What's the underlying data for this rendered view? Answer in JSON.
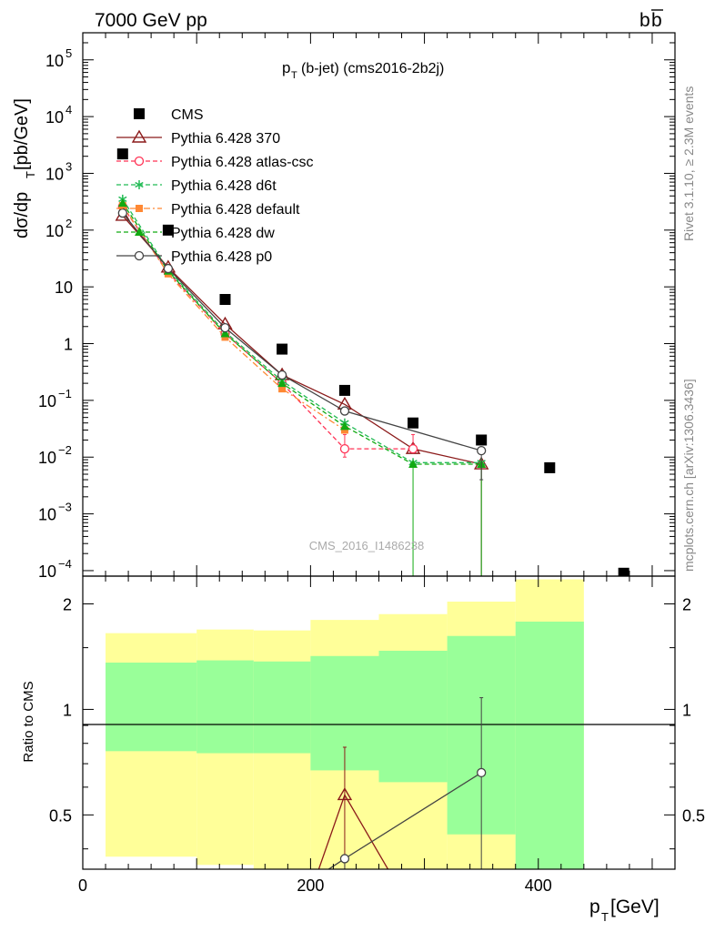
{
  "header": {
    "energy_label": "7000 GeV pp",
    "process_prefix": "b",
    "process_bar": "b"
  },
  "side_labels": {
    "rivet": "Rivet 3.1.10, ≥ 2.3M events",
    "mcplots": "mcplots.cern.ch [arXiv:1306.3436]"
  },
  "chart_data": [
    {
      "type": "scatter",
      "title_main": "p",
      "title_sub": "T",
      "title_rest": "(b-jet) (cms2016-2b2j)",
      "ylabel_main": "dσ/dp",
      "ylabel_sub": "T",
      "ylabel_rest": " [pb/GeV]",
      "watermark": "CMS_2016_I1486238",
      "yscale": "log",
      "xlim": [
        0,
        520
      ],
      "ylim": [
        8e-05,
        300000
      ],
      "x_ticks": [
        0,
        200,
        400
      ],
      "y_ticks": [
        {
          "value": 100000,
          "base": "10",
          "exp": "5"
        },
        {
          "value": 10000,
          "base": "10",
          "exp": "4"
        },
        {
          "value": 1000,
          "base": "10",
          "exp": "3"
        },
        {
          "value": 100,
          "base": "10",
          "exp": "2"
        },
        {
          "value": 10,
          "base": "10",
          "exp": ""
        },
        {
          "value": 1,
          "base": "1",
          "exp": ""
        },
        {
          "value": 0.1,
          "base": "10",
          "exp": "−1"
        },
        {
          "value": 0.01,
          "base": "10",
          "exp": "−2"
        },
        {
          "value": 0.001,
          "base": "10",
          "exp": "−3"
        },
        {
          "value": 0.0001,
          "base": "10",
          "exp": "−4"
        }
      ],
      "legend_position": "top-left",
      "series": [
        {
          "name": "CMS",
          "color": "#000000",
          "marker": "square",
          "line": "none",
          "x": [
            35,
            75,
            125,
            175,
            230,
            290,
            350,
            410,
            475
          ],
          "y": [
            2200,
            100,
            6,
            0.8,
            0.15,
            0.04,
            0.02,
            0.0065,
            9e-05
          ]
        },
        {
          "name": "Pythia 6.428 370",
          "color": "#8b1a1a",
          "marker": "triangle-open",
          "line": "solid",
          "x": [
            35,
            75,
            125,
            175,
            230,
            290,
            350
          ],
          "y": [
            180,
            22,
            2.2,
            0.28,
            0.085,
            0.014,
            0.0075
          ],
          "yerr_low": [
            null,
            null,
            null,
            null,
            null,
            null,
            0.0075
          ]
        },
        {
          "name": "Pythia 6.428 atlas-csc",
          "color": "#ff3355",
          "marker": "circle-open",
          "line": "dashed",
          "x": [
            35,
            75,
            125,
            175,
            230,
            290
          ],
          "y": [
            260,
            18,
            1.5,
            0.2,
            0.014,
            0.014
          ],
          "yerr_low": [
            null,
            null,
            null,
            null,
            0.004,
            null
          ],
          "yerr_high": [
            null,
            null,
            null,
            null,
            0.025,
            0.025
          ]
        },
        {
          "name": "Pythia 6.428 d6t",
          "color": "#22bb55",
          "marker": "star",
          "line": "dashed",
          "x": [
            35,
            75,
            125,
            175,
            230,
            290,
            350
          ],
          "y": [
            350,
            20,
            1.6,
            0.22,
            0.04,
            0.008,
            0.008
          ]
        },
        {
          "name": "Pythia 6.428 default",
          "color": "#ff8833",
          "marker": "square-filled",
          "line": "dashdot",
          "x": [
            35,
            75,
            125,
            175,
            230
          ],
          "y": [
            270,
            17,
            1.3,
            0.16,
            0.03
          ]
        },
        {
          "name": "Pythia 6.428 dw",
          "color": "#11aa11",
          "marker": "triangle-filled",
          "line": "dashed",
          "x": [
            35,
            75,
            125,
            175,
            230,
            290,
            350
          ],
          "y": [
            300,
            19,
            1.5,
            0.2,
            0.035,
            0.0075,
            0.0075
          ],
          "yerr_low": [
            null,
            null,
            null,
            null,
            null,
            0.0075,
            0.0075
          ]
        },
        {
          "name": "Pythia 6.428 p0",
          "color": "#444444",
          "marker": "circle-open",
          "line": "solid",
          "x": [
            35,
            75,
            125,
            175,
            230,
            350
          ],
          "y": [
            200,
            21,
            1.9,
            0.28,
            0.065,
            0.013
          ],
          "yerr_low": [
            null,
            null,
            null,
            null,
            null,
            0.009
          ],
          "yerr_high": [
            null,
            null,
            null,
            null,
            null,
            0.015
          ]
        }
      ]
    },
    {
      "type": "area",
      "ylabel": "Ratio to CMS",
      "yscale": "log",
      "xlim": [
        0,
        520
      ],
      "ylim": [
        0.35,
        2.4
      ],
      "y_ticks": [
        {
          "value": 2,
          "label": "2"
        },
        {
          "value": 1,
          "label": "1"
        },
        {
          "value": 0.5,
          "label": "0.5"
        }
      ],
      "x_ticks": [
        0,
        200,
        400
      ],
      "xlabel_main": "p",
      "xlabel_sub": "T",
      "xlabel_rest": " [GeV]",
      "bands": {
        "bin_edges": [
          20,
          100,
          150,
          200,
          260,
          320,
          380,
          440
        ],
        "yellow_low": [
          0.38,
          0.36,
          0.35,
          0.35,
          0.35,
          0.35,
          0.35
        ],
        "yellow_high": [
          1.65,
          1.69,
          1.68,
          1.8,
          1.87,
          2.03,
          2.35
        ],
        "green_low": [
          0.76,
          0.75,
          0.75,
          0.67,
          0.62,
          0.44,
          0.35
        ],
        "green_high": [
          1.36,
          1.38,
          1.37,
          1.42,
          1.47,
          1.62,
          1.78
        ]
      },
      "series": [
        {
          "name": "Pythia 6.428 370",
          "color": "#8b1a1a",
          "marker": "triangle-open",
          "x": [
            200,
            230,
            280
          ],
          "y": [
            0.3,
            0.57,
            0.3
          ],
          "points": [
            {
              "x": 230,
              "y": 0.57,
              "err_low": 0.35,
              "err_high": 0.78
            }
          ]
        },
        {
          "name": "Pythia 6.428 p0",
          "color": "#444444",
          "marker": "circle-open",
          "x": [
            210,
            230,
            350
          ],
          "y": [
            0.34,
            0.375,
            0.66
          ],
          "points": [
            {
              "x": 230,
              "y": 0.375,
              "err_low": 0.35,
              "err_high": 0.375
            },
            {
              "x": 350,
              "y": 0.66,
              "err_low": 0.35,
              "err_high": 1.08
            }
          ]
        }
      ]
    }
  ]
}
